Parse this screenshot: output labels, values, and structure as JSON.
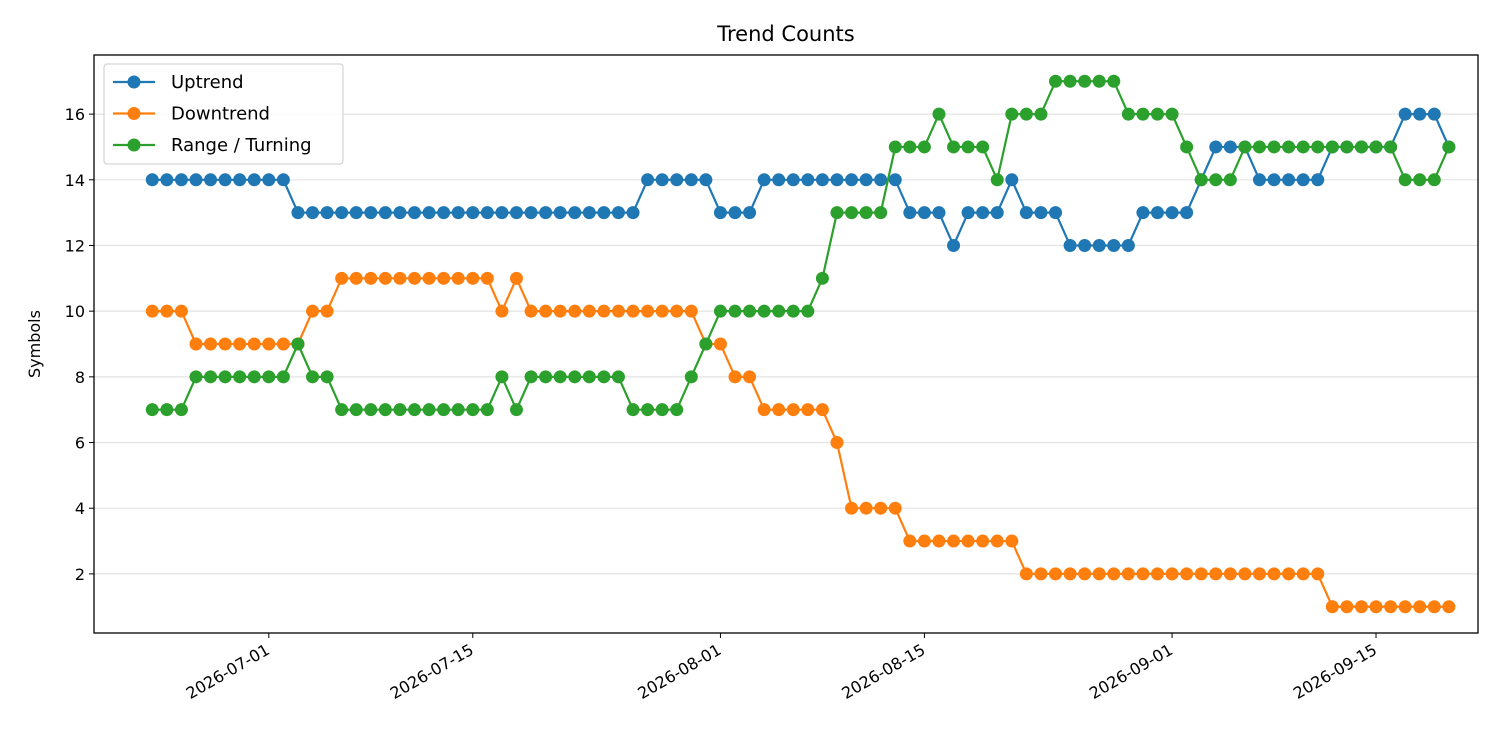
{
  "chart_data": {
    "type": "line",
    "title": "Trend Counts",
    "xlabel": "",
    "ylabel": "Symbols",
    "x_start": "2026-06-23",
    "x_end": "2026-09-18",
    "xlim": [
      "2026-06-19",
      "2026-09-22"
    ],
    "ylim": [
      0.2,
      17.8
    ],
    "xticks": [
      "2026-07-01",
      "2026-07-15",
      "2026-08-01",
      "2026-08-15",
      "2026-09-01",
      "2026-09-15"
    ],
    "yticks": [
      2,
      4,
      6,
      8,
      10,
      12,
      14,
      16
    ],
    "grid": "horizontal",
    "legend_position": "upper left",
    "series": [
      {
        "name": "Uptrend",
        "color": "#1f77b4",
        "values": [
          14,
          14,
          14,
          14,
          14,
          14,
          14,
          14,
          14,
          14,
          13,
          13,
          13,
          13,
          13,
          13,
          13,
          13,
          13,
          13,
          13,
          13,
          13,
          13,
          13,
          13,
          13,
          13,
          13,
          13,
          13,
          13,
          13,
          13,
          14,
          14,
          14,
          14,
          14,
          13,
          13,
          13,
          14,
          14,
          14,
          14,
          14,
          14,
          14,
          14,
          14,
          14,
          13,
          13,
          13,
          12,
          13,
          13,
          13,
          14,
          13,
          13,
          13,
          12,
          12,
          12,
          12,
          12,
          13,
          13,
          13,
          13,
          14,
          15,
          15,
          15,
          14,
          14,
          14,
          14,
          14,
          15,
          15,
          15,
          15,
          15,
          16,
          16,
          16,
          15
        ]
      },
      {
        "name": "Downtrend",
        "color": "#ff7f0e",
        "values": [
          10,
          10,
          10,
          9,
          9,
          9,
          9,
          9,
          9,
          9,
          9,
          10,
          10,
          11,
          11,
          11,
          11,
          11,
          11,
          11,
          11,
          11,
          11,
          11,
          10,
          11,
          10,
          10,
          10,
          10,
          10,
          10,
          10,
          10,
          10,
          10,
          10,
          10,
          9,
          9,
          8,
          8,
          7,
          7,
          7,
          7,
          7,
          6,
          4,
          4,
          4,
          4,
          3,
          3,
          3,
          3,
          3,
          3,
          3,
          3,
          2,
          2,
          2,
          2,
          2,
          2,
          2,
          2,
          2,
          2,
          2,
          2,
          2,
          2,
          2,
          2,
          2,
          2,
          2,
          2,
          2,
          1,
          1,
          1,
          1,
          1,
          1,
          1,
          1,
          1
        ]
      },
      {
        "name": "Range / Turning",
        "color": "#2ca02c",
        "values": [
          7,
          7,
          7,
          8,
          8,
          8,
          8,
          8,
          8,
          8,
          9,
          8,
          8,
          7,
          7,
          7,
          7,
          7,
          7,
          7,
          7,
          7,
          7,
          7,
          8,
          7,
          8,
          8,
          8,
          8,
          8,
          8,
          8,
          7,
          7,
          7,
          7,
          8,
          9,
          10,
          10,
          10,
          10,
          10,
          10,
          10,
          11,
          13,
          13,
          13,
          13,
          15,
          15,
          15,
          16,
          15,
          15,
          15,
          14,
          16,
          16,
          16,
          17,
          17,
          17,
          17,
          17,
          16,
          16,
          16,
          16,
          15,
          14,
          14,
          14,
          15,
          15,
          15,
          15,
          15,
          15,
          15,
          15,
          15,
          15,
          15,
          14,
          14,
          14,
          15
        ]
      }
    ]
  }
}
